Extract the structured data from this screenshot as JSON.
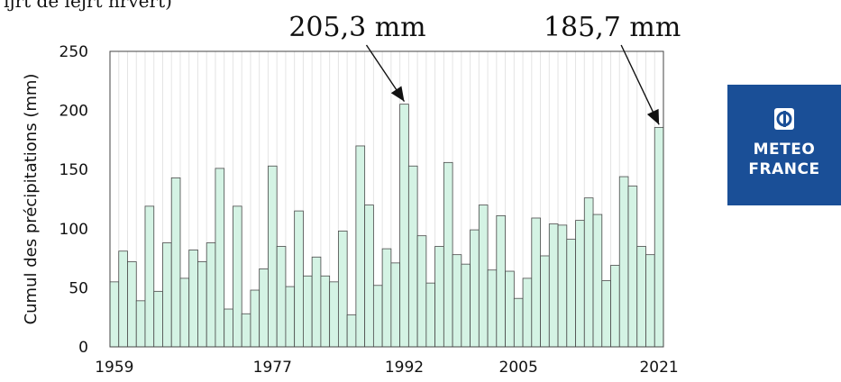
{
  "header_fragment": "ijrt de  lejrt nrvert)",
  "chart_data": {
    "type": "bar",
    "title": "",
    "xlabel": "",
    "ylabel": "Cumul des précipitations (mm)",
    "ylim": [
      0,
      250
    ],
    "yticks": [
      0,
      50,
      100,
      150,
      200,
      250
    ],
    "xticks": [
      "1959",
      "1977",
      "1992",
      "2005",
      "2021"
    ],
    "x": [
      1959,
      1960,
      1961,
      1962,
      1963,
      1964,
      1965,
      1966,
      1967,
      1968,
      1969,
      1970,
      1971,
      1972,
      1973,
      1974,
      1975,
      1976,
      1977,
      1978,
      1979,
      1980,
      1981,
      1982,
      1983,
      1984,
      1985,
      1986,
      1987,
      1988,
      1989,
      1990,
      1991,
      1992,
      1993,
      1994,
      1995,
      1996,
      1997,
      1998,
      1999,
      2000,
      2001,
      2002,
      2003,
      2004,
      2005,
      2006,
      2007,
      2008,
      2009,
      2010,
      2011,
      2012,
      2013,
      2014,
      2015,
      2016,
      2017,
      2018,
      2019,
      2020,
      2021
    ],
    "values": [
      55,
      81,
      72,
      39,
      119,
      47,
      88,
      143,
      58,
      82,
      72,
      88,
      151,
      32,
      119,
      28,
      48,
      66,
      153,
      85,
      51,
      115,
      60,
      76,
      60,
      55,
      98,
      27,
      170,
      120,
      52,
      83,
      71,
      205.3,
      153,
      94,
      54,
      85,
      156,
      78,
      70,
      99,
      120,
      65,
      111,
      64,
      41,
      58,
      109,
      77,
      104,
      103,
      91,
      107,
      126,
      112,
      56,
      69,
      144,
      136,
      85,
      78,
      185.7
    ],
    "bar_color": "#d4f3e4",
    "bar_edge": "#4a4a4a",
    "grid": "vertical",
    "annotations": [
      {
        "text": "205,3 mm",
        "x": 1992,
        "y": 205.3
      },
      {
        "text": "185,7 mm",
        "x": 2021,
        "y": 185.7
      }
    ]
  },
  "logo": {
    "line1": "METEO",
    "line2": "FRANCE",
    "background": "#1a4f97"
  }
}
